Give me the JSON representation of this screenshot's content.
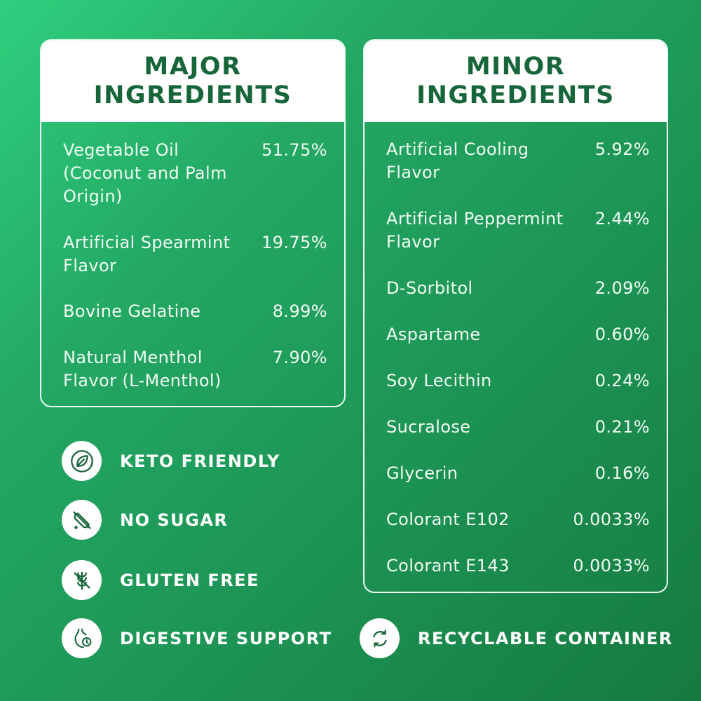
{
  "major": {
    "title_line1": "MAJOR",
    "title_line2": "INGREDIENTS",
    "items": [
      {
        "name": "Vegetable Oil (Coconut and Palm Origin)",
        "percent": "51.75%"
      },
      {
        "name": "Artificial Spearmint Flavor",
        "percent": "19.75%"
      },
      {
        "name": "Bovine Gelatine",
        "percent": "8.99%"
      },
      {
        "name": "Natural Menthol Flavor (L-Menthol)",
        "percent": "7.90%"
      }
    ]
  },
  "minor": {
    "title_line1": "MINOR",
    "title_line2": "INGREDIENTS",
    "items": [
      {
        "name": "Artificial Cooling Flavor",
        "percent": "5.92%"
      },
      {
        "name": "Artificial Peppermint Flavor",
        "percent": "2.44%"
      },
      {
        "name": "D-Sorbitol",
        "percent": "2.09%"
      },
      {
        "name": "Aspartame",
        "percent": "0.60%"
      },
      {
        "name": "Soy Lecithin",
        "percent": "0.24%"
      },
      {
        "name": "Sucralose",
        "percent": "0.21%"
      },
      {
        "name": "Glycerin",
        "percent": "0.16%"
      },
      {
        "name": "Colorant E102",
        "percent": "0.0033%"
      },
      {
        "name": "Colorant E143",
        "percent": "0.0033%"
      }
    ]
  },
  "badges": [
    {
      "label": "KETO FRIENDLY",
      "icon": "leaf-icon"
    },
    {
      "label": "NO SUGAR",
      "icon": "no-sugar-icon"
    },
    {
      "label": "GLUTEN FREE",
      "icon": "gluten-free-icon"
    },
    {
      "label": "DIGESTIVE SUPPORT",
      "icon": "digestive-icon"
    },
    {
      "label": "RECYCLABLE CONTAINER",
      "icon": "recycle-icon"
    }
  ],
  "colors": {
    "brand_green": "#17663a",
    "background_light": "#2fcf7e",
    "background_dark": "#157a40"
  }
}
